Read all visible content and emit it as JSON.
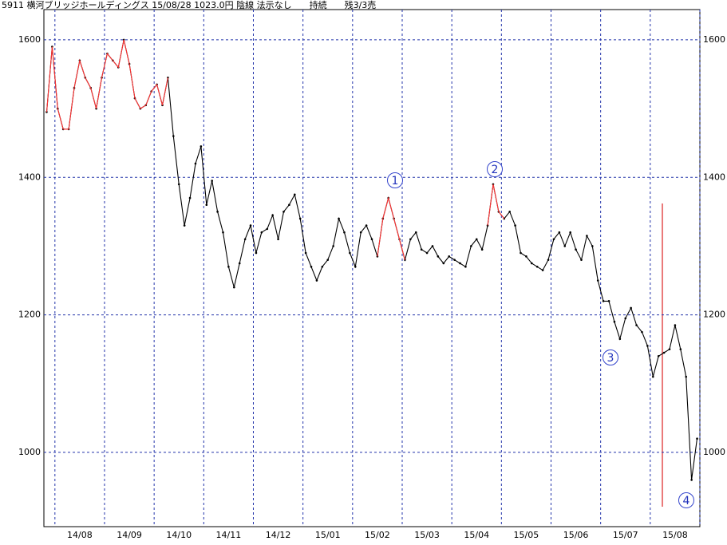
{
  "chart_data": {
    "type": "line",
    "title": "5911 横河ブリッジホールディングス 15/08/28 1023.0円 陰線 法示なし　　持続　　残3/3売",
    "categories": [
      null,
      null,
      null,
      null,
      null,
      null,
      "14/08",
      null,
      null,
      null,
      null,
      null,
      null,
      null,
      null,
      "14/09",
      null,
      null,
      null,
      null,
      null,
      null,
      null,
      null,
      "14/10",
      null,
      null,
      null,
      null,
      null,
      null,
      null,
      null,
      "14/11",
      null,
      null,
      null,
      null,
      null,
      null,
      null,
      null,
      "14/12",
      null,
      null,
      null,
      null,
      null,
      null,
      null,
      null,
      "15/01",
      null,
      null,
      null,
      null,
      null,
      null,
      null,
      null,
      "15/02",
      null,
      null,
      null,
      null,
      null,
      null,
      null,
      null,
      "15/03",
      null,
      null,
      null,
      null,
      null,
      null,
      null,
      null,
      "15/04",
      null,
      null,
      null,
      null,
      null,
      null,
      null,
      null,
      "15/05",
      null,
      null,
      null,
      null,
      null,
      null,
      null,
      null,
      "15/06",
      null,
      null,
      null,
      null,
      null,
      null,
      null,
      null,
      "15/07",
      null,
      null,
      null,
      null,
      null,
      null,
      null,
      null,
      "15/08",
      null,
      null,
      null,
      null
    ],
    "series": [
      {
        "color": "#000000",
        "values": [
          1495,
          1590,
          1500,
          1470,
          1470,
          1530,
          1570,
          1545,
          1530,
          1500,
          1545,
          1580,
          1570,
          1560,
          1600,
          1565,
          1515,
          1500,
          1505,
          1525,
          1535,
          1505,
          1545,
          1460,
          1390,
          1330,
          1370,
          1420,
          1445,
          1360,
          1395,
          1350,
          1320,
          1270,
          1240,
          1275,
          1310,
          1330,
          1290,
          1320,
          1325,
          1345,
          1310,
          1350,
          1360,
          1375,
          1340,
          1290,
          1270,
          1250,
          1270,
          1280,
          1300,
          1340,
          1320,
          1290,
          1270,
          1320,
          1330,
          1310,
          1285,
          1340,
          1370,
          1340,
          1310,
          1280,
          1310,
          1320,
          1295,
          1290,
          1300,
          1285,
          1275,
          1285,
          1280,
          1275,
          1270,
          1300,
          1310,
          1295,
          1330,
          1390,
          1350,
          1340,
          1350,
          1330,
          1290,
          1285,
          1275,
          1270,
          1265,
          1280,
          1310,
          1320,
          1300,
          1320,
          1295,
          1280,
          1315,
          1300,
          1250,
          1220,
          1220,
          1190,
          1165,
          1195,
          1210,
          1185,
          1175,
          1155,
          1110,
          1140,
          1145,
          1150,
          1185,
          1150,
          1110,
          960,
          1020
        ]
      },
      {
        "color": "#ff3333",
        "values": [
          1495,
          1590,
          1500,
          1470,
          1470,
          1530,
          1570,
          1545,
          1530,
          1500,
          1545,
          1580,
          1570,
          1560,
          1600,
          1565,
          1515,
          1500,
          1505,
          1525,
          1535,
          1505,
          1545,
          null,
          null,
          null,
          null,
          null,
          null,
          null,
          null,
          null,
          null,
          null,
          null,
          null,
          null,
          null,
          null,
          null,
          null,
          null,
          null,
          null,
          null,
          null,
          null,
          null,
          null,
          null,
          null,
          null,
          null,
          null,
          null,
          null,
          null,
          null,
          null,
          null,
          1285,
          1340,
          1370,
          1340,
          1310,
          1280,
          null,
          null,
          null,
          null,
          null,
          null,
          null,
          null,
          null,
          null,
          null,
          null,
          null,
          null,
          1330,
          1390,
          1350,
          1340,
          null,
          null,
          null,
          null,
          null,
          null,
          null,
          null,
          null,
          null,
          null,
          null,
          null,
          null,
          null,
          null,
          null,
          null,
          null,
          null,
          null,
          null,
          null,
          null,
          null,
          null,
          null,
          null,
          null,
          null,
          null,
          null,
          null,
          null,
          null
        ]
      }
    ],
    "ylim": [
      892,
      1644
    ],
    "yticks": [
      1000,
      1200,
      1400,
      1600
    ],
    "grid": true,
    "annotations": [
      "1",
      "2",
      "3",
      "4"
    ]
  }
}
